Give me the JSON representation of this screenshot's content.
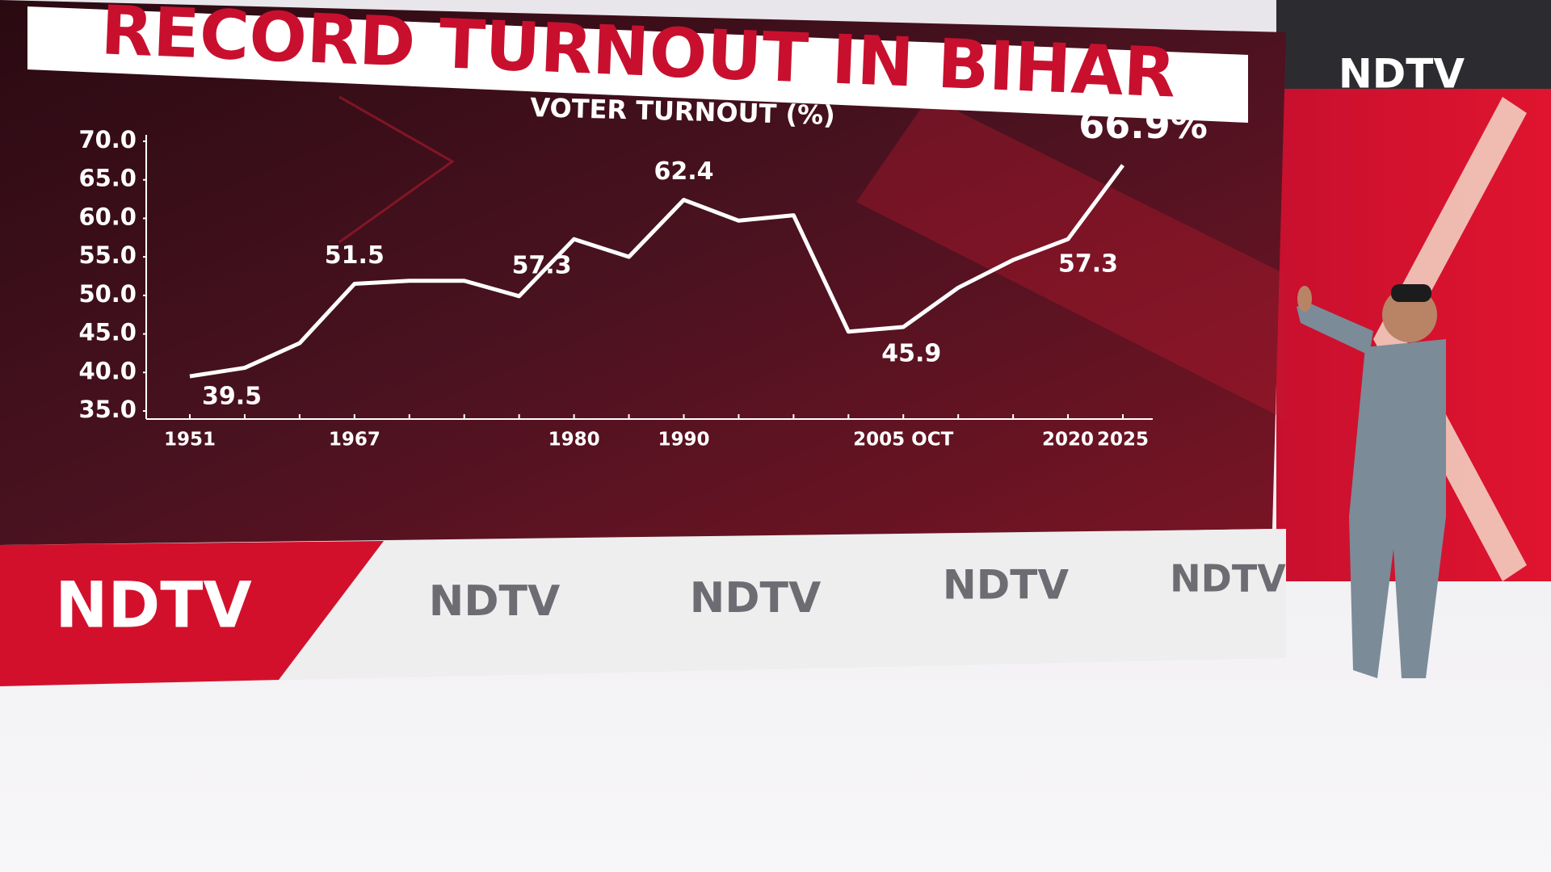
{
  "brand": "NDTV",
  "chart_data": {
    "type": "line",
    "title": "RECORD TURNOUT IN BIHAR",
    "subtitle": "VOTER TURNOUT (%)",
    "categories": [
      "1951",
      null,
      null,
      "1967",
      null,
      null,
      null,
      "1980",
      null,
      "1990",
      null,
      null,
      null,
      "2005 OCT",
      null,
      null,
      "2020",
      "2025"
    ],
    "series": [
      {
        "name": "Voter turnout",
        "color": "#ffffff",
        "values": [
          39.5,
          40.6,
          43.8,
          51.5,
          51.9,
          51.9,
          49.9,
          57.3,
          55.0,
          62.4,
          59.7,
          60.4,
          45.3,
          45.9,
          51.0,
          54.6,
          57.3,
          66.9
        ],
        "value_labels": [
          "39.5",
          null,
          null,
          "51.5",
          null,
          null,
          null,
          "57.3",
          null,
          "62.4",
          null,
          null,
          null,
          "45.9",
          null,
          null,
          "57.3",
          "66.9%"
        ]
      }
    ],
    "ylim": [
      35,
      70
    ],
    "yticks": [
      {
        "value": 35,
        "label": "35.0"
      },
      {
        "value": 40,
        "label": "40.0"
      },
      {
        "value": 45,
        "label": "45.0"
      },
      {
        "value": 50,
        "label": "50.0"
      },
      {
        "value": 55,
        "label": "55.0"
      },
      {
        "value": 60,
        "label": "60.0"
      },
      {
        "value": 65,
        "label": "65.0"
      },
      {
        "value": 70,
        "label": "70.0"
      }
    ],
    "grid": false
  }
}
